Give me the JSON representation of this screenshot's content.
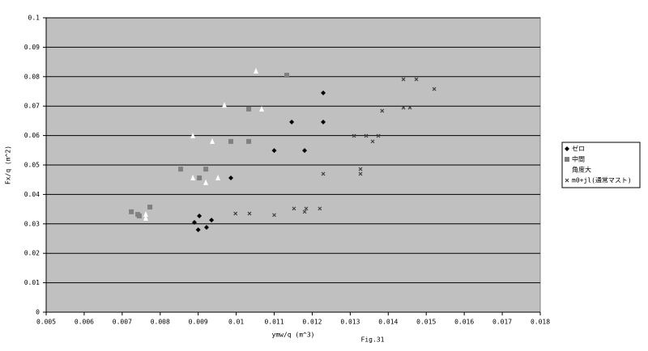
{
  "chart_data": {
    "type": "scatter",
    "x_label": "ymw/q (m^3)",
    "y_label": "Fx/q (m^2)",
    "caption": "Fig.31",
    "xlim": [
      0.005,
      0.018
    ],
    "xticks": [
      0.005,
      0.006,
      0.007,
      0.008,
      0.009,
      0.01,
      0.011,
      0.012,
      0.013,
      0.014,
      0.015,
      0.016,
      0.017,
      0.018
    ],
    "ylim": [
      0,
      0.1
    ],
    "yticks": [
      0,
      0.01,
      0.02,
      0.03,
      0.04,
      0.05,
      0.06,
      0.07,
      0.08,
      0.09,
      0.1
    ],
    "grid": true,
    "legend": "right",
    "series": [
      {
        "name": "ゼロ",
        "marker": "diamond",
        "color": "#000000",
        "x": [
          0.0089,
          0.00903,
          0.009,
          0.00922,
          0.00935,
          0.00986,
          0.011,
          0.01146,
          0.0118,
          0.01229,
          0.01229
        ],
        "y": [
          0.0305,
          0.0327,
          0.028,
          0.0288,
          0.0313,
          0.0456,
          0.0549,
          0.0646,
          0.0549,
          0.0745,
          0.0646
        ]
      },
      {
        "name": "中間",
        "marker": "square",
        "color": "#808080",
        "x": [
          0.00724,
          0.00741,
          0.00745,
          0.00773,
          0.00854,
          0.00903,
          0.0092,
          0.00986,
          0.01033,
          0.01033,
          0.01133
        ],
        "y": [
          0.0341,
          0.0332,
          0.0327,
          0.0357,
          0.0486,
          0.0456,
          0.0486,
          0.058,
          0.069,
          0.058,
          0.0805
        ]
      },
      {
        "name": "角度大",
        "marker": "triangle",
        "color": "#ffffff",
        "x": [
          0.00762,
          0.00762,
          0.00886,
          0.00886,
          0.0092,
          0.00937,
          0.00952,
          0.00969,
          0.01052,
          0.01067
        ],
        "y": [
          0.0319,
          0.0332,
          0.0599,
          0.0456,
          0.044,
          0.058,
          0.0456,
          0.0703,
          0.0819,
          0.069
        ]
      },
      {
        "name": "m0+jl(通常マスト)",
        "marker": "x",
        "color": "#404040",
        "x": [
          0.00998,
          0.01035,
          0.011,
          0.01152,
          0.0118,
          0.01184,
          0.0122,
          0.01229,
          0.0131,
          0.01327,
          0.01327,
          0.01342,
          0.01359,
          0.01374,
          0.01384,
          0.0144,
          0.0144,
          0.01457,
          0.01474,
          0.01521
        ],
        "y": [
          0.0335,
          0.0335,
          0.033,
          0.0352,
          0.0341,
          0.0352,
          0.0352,
          0.047,
          0.0599,
          0.0486,
          0.047,
          0.0599,
          0.058,
          0.0599,
          0.0684,
          0.0791,
          0.0695,
          0.0695,
          0.0791,
          0.0758
        ]
      }
    ]
  }
}
